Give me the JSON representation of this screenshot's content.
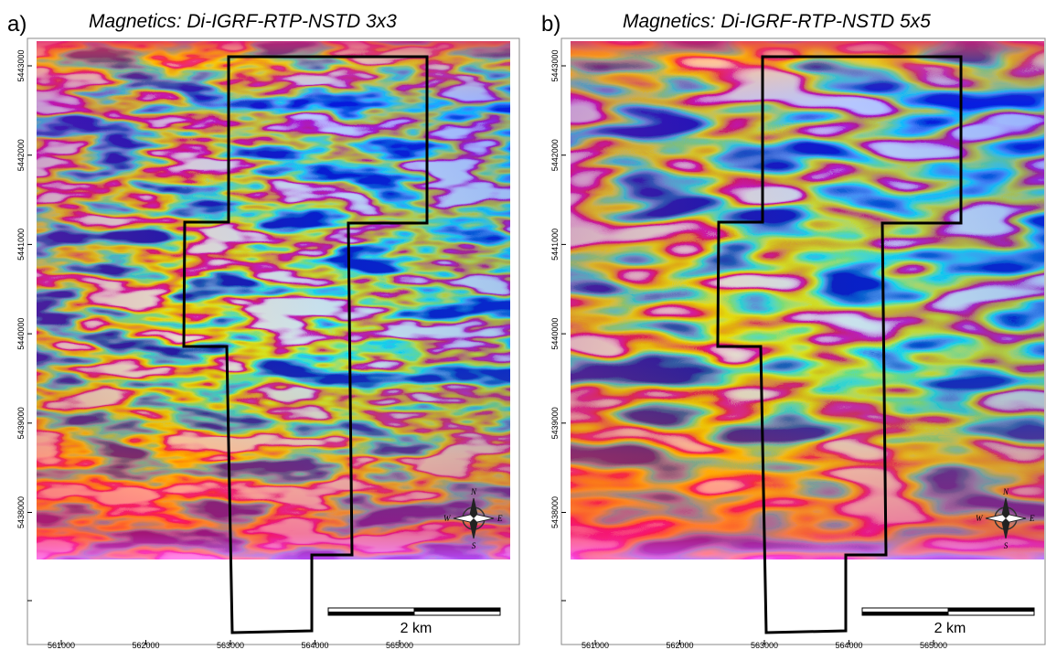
{
  "panels": [
    {
      "label": "a)",
      "title": "Magnetics: Di-IGRF-RTP-NSTD 3x3",
      "x_ticks": [
        "561000",
        "562000",
        "563000",
        "564000",
        "565000"
      ],
      "y_ticks": [
        "5443000",
        "5442000",
        "5441000",
        "5440000",
        "5439000",
        "5438000"
      ],
      "scale_bar": "2 km",
      "compass": {
        "n": "N",
        "e": "E",
        "s": "S",
        "w": "W"
      }
    },
    {
      "label": "b)",
      "title": "Magnetics: Di-IGRF-RTP-NSTD 5x5",
      "x_ticks": [
        "561000",
        "562000",
        "563000",
        "564000",
        "565000"
      ],
      "y_ticks": [
        "5443000",
        "5442000",
        "5441000",
        "5440000",
        "5439000",
        "5438000"
      ],
      "scale_bar": "2 km",
      "compass": {
        "n": "N",
        "e": "E",
        "s": "S",
        "w": "W"
      }
    }
  ]
}
